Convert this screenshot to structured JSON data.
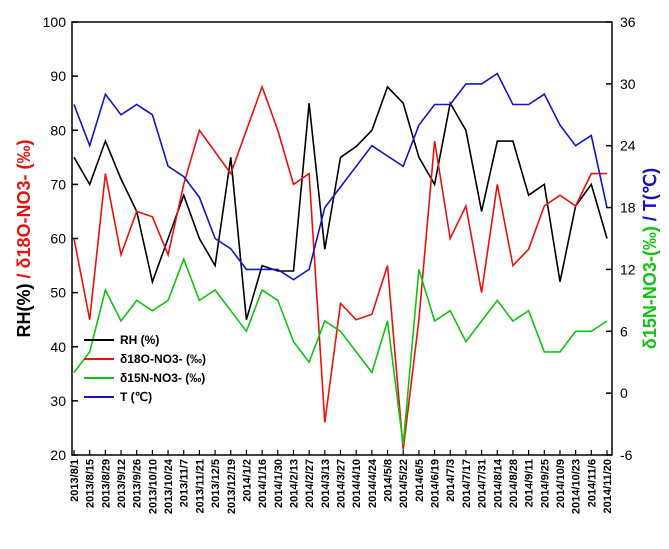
{
  "chart_data": {
    "type": "line",
    "categories": [
      "2013/8/1",
      "2013/8/15",
      "2013/8/29",
      "2013/9/12",
      "2013/9/26",
      "2013/10/10",
      "2013/10/24",
      "2013/11/7",
      "2013/11/21",
      "2013/12/5",
      "2013/12/19",
      "2014/1/2",
      "2014/1/16",
      "2014/1/30",
      "2014/2/13",
      "2014/2/27",
      "2014/3/13",
      "2014/3/27",
      "2014/4/10",
      "2014/4/24",
      "2014/5/8",
      "2014/5/22",
      "2014/6/5",
      "2014/6/19",
      "2014/7/3",
      "2014/7/17",
      "2014/7/31",
      "2014/8/14",
      "2014/8/28",
      "2014/9/11",
      "2014/9/25",
      "2014/10/9",
      "2014/10/23",
      "2014/11/6",
      "2014/11/20"
    ],
    "series": [
      {
        "name": "RH (%)",
        "color": "#000000",
        "values": [
          75,
          70,
          78,
          71,
          65,
          52,
          60,
          68,
          60,
          55,
          75,
          45,
          55,
          54,
          54,
          85,
          58,
          75,
          77,
          80,
          88,
          85,
          75,
          70,
          85,
          80,
          65,
          78,
          78,
          68,
          70,
          52,
          66,
          70,
          60
        ]
      },
      {
        "name": "δ18O-NO3- (‰)",
        "color": "#e8120c",
        "values": [
          60,
          45,
          72,
          57,
          65,
          64,
          57,
          70,
          80,
          76,
          72,
          80,
          88,
          80,
          70,
          72,
          26,
          48,
          45,
          46,
          55,
          21,
          45,
          78,
          60,
          66,
          50,
          70,
          55,
          58,
          66,
          68,
          66,
          72,
          72
        ]
      },
      {
        "name": "δ15N-NO3- (‰)",
        "color": "#11c211",
        "axis": "y2",
        "values": [
          2,
          4,
          10,
          7,
          9,
          8,
          9,
          13,
          9,
          10,
          8,
          6,
          10,
          9,
          5,
          3,
          7,
          6,
          4,
          2,
          7,
          -5,
          12,
          7,
          8,
          5,
          7,
          9,
          7,
          8,
          4,
          4,
          6,
          6,
          7
        ]
      },
      {
        "name": "T (℃)",
        "color": "#1414c8",
        "axis": "y2",
        "values": [
          28,
          24,
          29,
          27,
          28,
          27,
          22,
          21,
          19,
          15,
          14,
          12,
          12,
          12,
          11,
          12,
          18,
          20,
          22,
          24,
          23,
          22,
          26,
          28,
          28,
          30,
          30,
          31,
          28,
          28,
          29,
          26,
          24,
          25,
          18
        ]
      }
    ],
    "y_label": [
      {
        "text": "RH(%)",
        "color": "#000000"
      },
      {
        "text": " / δ18O-NO3- (‰)",
        "color": "#e8120c"
      }
    ],
    "y2_label": [
      {
        "text": "δ15N-NO3-(‰)",
        "color": "#11c211"
      },
      {
        "text": " / T(℃)",
        "color": "#1414c8"
      }
    ],
    "ylim": [
      20,
      100
    ],
    "yticks": [
      20,
      30,
      40,
      50,
      60,
      70,
      80,
      90,
      100
    ],
    "y2lim": [
      -6,
      36
    ],
    "y2ticks": [
      -6,
      0,
      6,
      12,
      18,
      24,
      30,
      36
    ],
    "legend": "lower left"
  }
}
